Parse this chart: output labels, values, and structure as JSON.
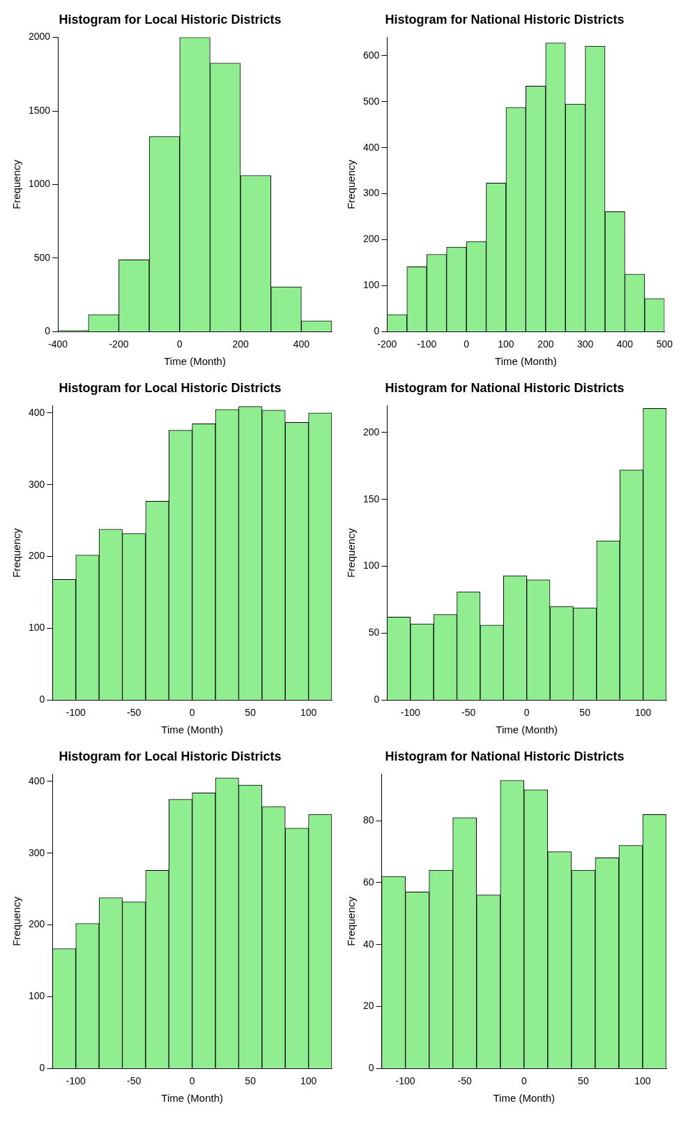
{
  "chart_data": [
    {
      "type": "histogram",
      "title": "Histogram for Local Historic Districts",
      "xlabel": "Time (Month)",
      "ylabel": "Frequency",
      "color": "#90ee90",
      "grid": false,
      "bins": [
        -400,
        -300,
        -200,
        -100,
        0,
        100,
        200,
        300,
        400,
        500
      ],
      "values": [
        8,
        116,
        488,
        1326,
        2000,
        1825,
        1061,
        304,
        73
      ],
      "xlim": [
        -400,
        500
      ],
      "xticks": [
        -400,
        -200,
        0,
        200,
        400
      ],
      "ylim": [
        0,
        2000
      ],
      "yticks": [
        0,
        500,
        1000,
        1500,
        2000
      ]
    },
    {
      "type": "histogram",
      "title": "Histogram for National Historic Districts",
      "xlabel": "Time (Month)",
      "ylabel": "Frequency",
      "color": "#90ee90",
      "grid": false,
      "bins": [
        -200,
        -150,
        -100,
        -50,
        0,
        50,
        100,
        150,
        200,
        250,
        300,
        350,
        400,
        450,
        500
      ],
      "values": [
        37,
        141,
        168,
        184,
        196,
        323,
        488,
        534,
        628,
        495,
        621,
        261,
        125,
        72
      ],
      "xlim": [
        -200,
        500
      ],
      "xticks": [
        -200,
        -100,
        0,
        100,
        200,
        300,
        400,
        500
      ],
      "ylim": [
        0,
        640
      ],
      "yticks": [
        0,
        100,
        200,
        300,
        400,
        500,
        600
      ]
    },
    {
      "type": "histogram",
      "title": "Histogram for Local Historic Districts",
      "xlabel": "Time (Month)",
      "ylabel": "Frequency",
      "color": "#90ee90",
      "grid": false,
      "bins": [
        -120,
        -100,
        -80,
        -60,
        -40,
        -20,
        0,
        20,
        40,
        60,
        80,
        100,
        120
      ],
      "values": [
        168,
        202,
        238,
        232,
        277,
        376,
        385,
        405,
        409,
        404,
        387,
        400
      ],
      "xlim": [
        -120,
        120
      ],
      "xticks": [
        -100,
        -50,
        0,
        50,
        100
      ],
      "ylim": [
        0,
        410
      ],
      "yticks": [
        0,
        100,
        200,
        300,
        400
      ]
    },
    {
      "type": "histogram",
      "title": "Histogram for National Historic Districts",
      "xlabel": "Time (Month)",
      "ylabel": "Frequency",
      "color": "#90ee90",
      "grid": false,
      "bins": [
        -120,
        -100,
        -80,
        -60,
        -40,
        -20,
        0,
        20,
        40,
        60,
        80,
        100,
        120
      ],
      "values": [
        62,
        57,
        64,
        81,
        56,
        93,
        90,
        70,
        69,
        119,
        172,
        218
      ],
      "xlim": [
        -120,
        120
      ],
      "xticks": [
        -100,
        -50,
        0,
        50,
        100
      ],
      "ylim": [
        0,
        220
      ],
      "yticks": [
        0,
        50,
        100,
        150,
        200
      ]
    },
    {
      "type": "histogram",
      "title": "Histogram for Local Historic Districts",
      "xlabel": "Time (Month)",
      "ylabel": "Frequency",
      "color": "#90ee90",
      "grid": false,
      "bins": [
        -120,
        -100,
        -80,
        -60,
        -40,
        -20,
        0,
        20,
        40,
        60,
        80,
        100,
        120
      ],
      "values": [
        167,
        202,
        238,
        232,
        276,
        375,
        384,
        405,
        395,
        365,
        335,
        354
      ],
      "xlim": [
        -120,
        120
      ],
      "xticks": [
        -100,
        -50,
        0,
        50,
        100
      ],
      "ylim": [
        0,
        410
      ],
      "yticks": [
        0,
        100,
        200,
        300,
        400
      ]
    },
    {
      "type": "histogram",
      "title": "Histogram for National Historic Districts",
      "xlabel": "Time (Month)",
      "ylabel": "Frequency",
      "color": "#90ee90",
      "grid": false,
      "bins": [
        -120,
        -100,
        -80,
        -60,
        -40,
        -20,
        0,
        20,
        40,
        60,
        80,
        100,
        120
      ],
      "values": [
        62,
        57,
        64,
        81,
        56,
        93,
        90,
        70,
        64,
        68,
        72,
        82
      ],
      "xlim": [
        -120,
        120
      ],
      "xticks": [
        -100,
        -50,
        0,
        50,
        100
      ],
      "ylim": [
        0,
        95
      ],
      "yticks": [
        0,
        20,
        40,
        60,
        80
      ]
    }
  ]
}
